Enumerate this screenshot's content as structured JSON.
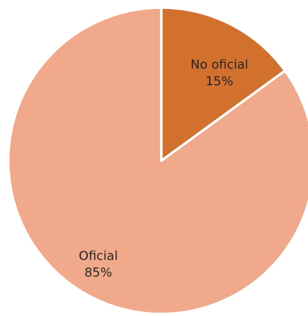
{
  "chart_data": {
    "type": "pie",
    "title": "",
    "legend": "none",
    "slices": [
      {
        "label": "No oficial",
        "value": 15,
        "value_label": "15%",
        "color": "#D2712E"
      },
      {
        "label": "Oficial",
        "value": 85,
        "value_label": "85%",
        "color": "#F0A98A"
      }
    ],
    "slice_border_color": "#FFFFFF",
    "start_angle": "12 o'clock",
    "direction": "clockwise"
  }
}
